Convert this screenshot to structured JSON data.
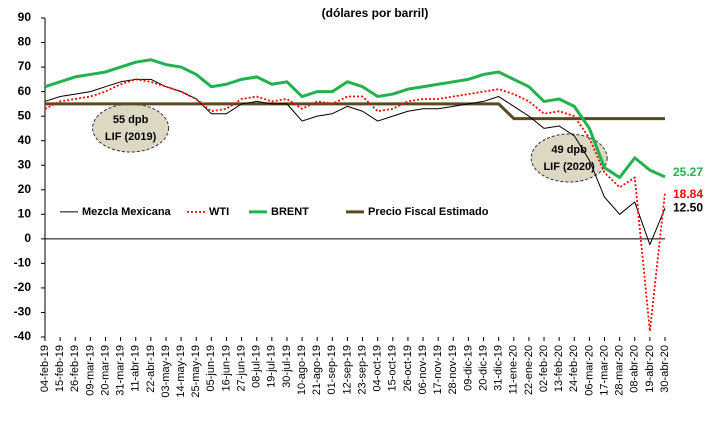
{
  "chart_data": {
    "type": "line",
    "subtitle": "(dólares por barril)",
    "categories": [
      "04-feb-19",
      "15-feb-19",
      "26-feb-19",
      "09-mar-19",
      "20-mar-19",
      "31-mar-19",
      "11-abr-19",
      "22-abr-19",
      "03-may-19",
      "14-may-19",
      "25-may-19",
      "05-jun-19",
      "16-jun-19",
      "27-jun-19",
      "08-jul-19",
      "19-jul-19",
      "30-jul-19",
      "10-ago-19",
      "21-ago-19",
      "01-sep-19",
      "12-sep-19",
      "23-sep-19",
      "04-oct-19",
      "15-oct-19",
      "26-oct-19",
      "06-nov-19",
      "17-nov-19",
      "28-nov-19",
      "09-dic-19",
      "20-dic-19",
      "31-dic-19",
      "11-ene-20",
      "22-ene-20",
      "02-feb-20",
      "13-feb-20",
      "24-feb-20",
      "06-mar-20",
      "17-mar-20",
      "28-mar-20",
      "08-abr-20",
      "19-abr-20",
      "30-abr-20"
    ],
    "series": [
      {
        "name": "Mezcla Mexicana",
        "color": "#000000",
        "style": "thin",
        "values": [
          56,
          58,
          59,
          60,
          62,
          64,
          65,
          65,
          62,
          60,
          57,
          51,
          51,
          55,
          56,
          55,
          55,
          48,
          50,
          51,
          54,
          52,
          48,
          50,
          52,
          53,
          53,
          54,
          55,
          56,
          58,
          54,
          50,
          45,
          46,
          42,
          32,
          17,
          10,
          15,
          -2.37,
          12.5
        ],
        "value_labels": [
          null,
          null,
          null,
          null,
          null,
          null,
          null,
          null,
          null,
          null,
          null,
          null,
          null,
          null,
          null,
          null,
          null,
          null,
          null,
          null,
          null,
          null,
          null,
          null,
          null,
          null,
          null,
          null,
          null,
          null,
          null,
          null,
          null,
          null,
          null,
          null,
          null,
          null,
          null,
          null,
          null,
          "12.50"
        ]
      },
      {
        "name": "WTI",
        "color": "#ff0000",
        "style": "dotted",
        "values": [
          53,
          56,
          57,
          58,
          60,
          63,
          65,
          64,
          62,
          60,
          57,
          52,
          53,
          57,
          58,
          56,
          57,
          53,
          56,
          55,
          58,
          58,
          52,
          53,
          56,
          57,
          57,
          58,
          59,
          60,
          61,
          59,
          56,
          51,
          52,
          50,
          41,
          27,
          21,
          25,
          -37.63,
          18.84
        ]
      },
      {
        "name": "BRENT",
        "color": "#22b14c",
        "style": "thick",
        "values": [
          62,
          64,
          66,
          67,
          68,
          70,
          72,
          73,
          71,
          70,
          67,
          62,
          63,
          65,
          66,
          63,
          64,
          58,
          60,
          60,
          64,
          62,
          58,
          59,
          61,
          62,
          63,
          64,
          65,
          67,
          68,
          65,
          62,
          56,
          57,
          54,
          45,
          29,
          25,
          33,
          28,
          25.27
        ]
      },
      {
        "name": "Precio Fiscal Estimado",
        "color": "#594a20",
        "style": "thick",
        "values": [
          55,
          55,
          55,
          55,
          55,
          55,
          55,
          55,
          55,
          55,
          55,
          55,
          55,
          55,
          55,
          55,
          55,
          55,
          55,
          55,
          55,
          55,
          55,
          55,
          55,
          55,
          55,
          55,
          55,
          55,
          55,
          49,
          49,
          49,
          49,
          49,
          49,
          49,
          49,
          49,
          49,
          49
        ]
      }
    ],
    "annotations": [
      {
        "lines": [
          "55 dpb",
          "LIF (2019)"
        ],
        "index": 5
      },
      {
        "lines": [
          "49 dpb",
          "LIF (2020)"
        ],
        "index": 34
      }
    ],
    "ylim": [
      -40,
      90
    ],
    "yticks": [
      -40,
      -30,
      -20,
      -10,
      0,
      10,
      20,
      30,
      40,
      50,
      60,
      70,
      80,
      90
    ]
  }
}
